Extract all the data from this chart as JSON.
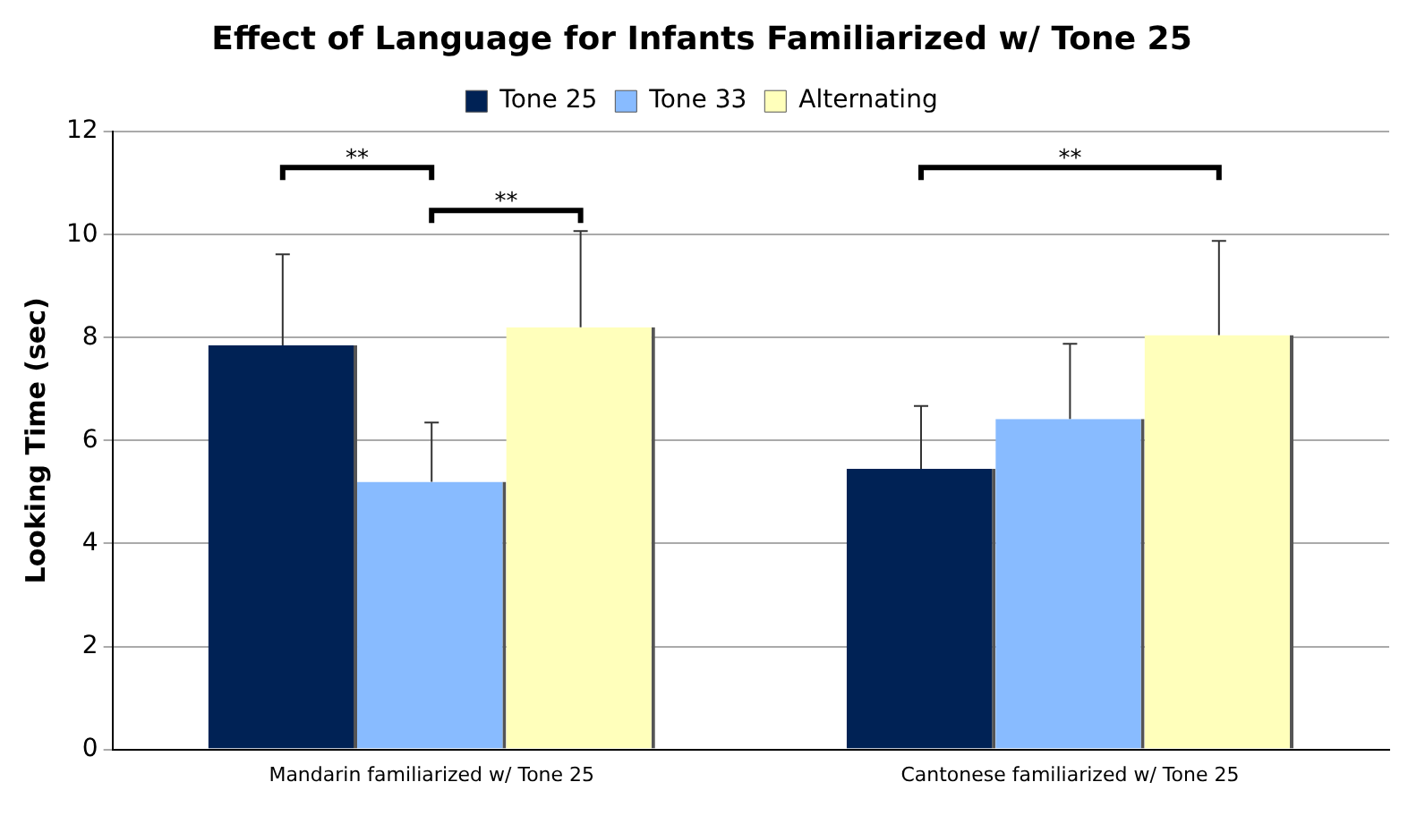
{
  "chart_data": {
    "type": "bar",
    "title": "Effect of Language for Infants Familiarized w/ Tone 25",
    "ylabel": "Looking Time (sec)",
    "categories": [
      "Mandarin familiarized w/ Tone 25",
      "Cantonese familiarized w/ Tone 25"
    ],
    "series": [
      {
        "name": "Tone 25",
        "color": "#002255",
        "values": [
          7.85,
          5.45
        ],
        "errors": [
          [
            7.85,
            9.62
          ],
          [
            5.45,
            6.67
          ]
        ]
      },
      {
        "name": "Tone 33",
        "color": "#88bbff",
        "values": [
          5.2,
          6.42
        ],
        "errors": [
          [
            5.2,
            6.35
          ],
          [
            6.42,
            7.88
          ]
        ]
      },
      {
        "name": "Alternating",
        "color": "#ffffbb",
        "values": [
          8.2,
          8.05
        ],
        "errors": [
          [
            8.2,
            10.07
          ],
          [
            8.05,
            9.88
          ]
        ]
      }
    ],
    "ylim": [
      0,
      12
    ],
    "yticks": [
      0,
      2,
      4,
      6,
      8,
      10,
      12
    ],
    "grid": "y",
    "legend": "top",
    "annotations": [
      "**",
      "**",
      "**"
    ]
  }
}
